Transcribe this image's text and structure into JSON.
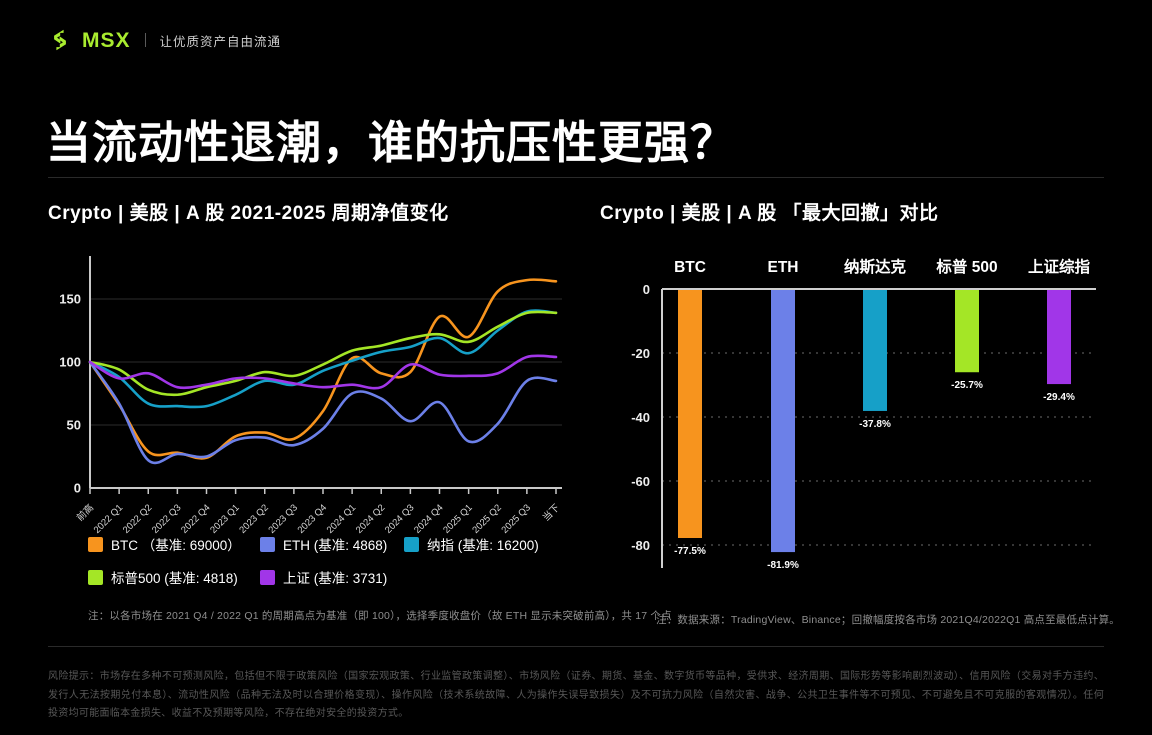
{
  "brand": {
    "logo_text": "MSX",
    "tagline": "让优质资产自由流通",
    "accent_color": "#A9EC2F"
  },
  "page_title": "当流动性退潮，谁的抗压性更强？",
  "chart_data": [
    {
      "type": "line",
      "title": "Crypto | 美股 | A 股   2021-2025 周期净值变化",
      "note": "注：以各市场在 2021 Q4 / 2022 Q1 的周期高点为基准（即 100），选择季度收盘价（故 ETH 显示未突破前高），共 17 个点",
      "x": [
        "前高",
        "2022 Q1",
        "2022 Q2",
        "2022 Q3",
        "2022 Q4",
        "2023 Q1",
        "2023 Q2",
        "2023 Q3",
        "2023 Q4",
        "2024 Q1",
        "2024 Q2",
        "2024 Q3",
        "2024 Q4",
        "2025 Q1",
        "2025 Q2",
        "2025 Q3",
        "当下"
      ],
      "yticks": [
        0,
        50,
        100,
        150
      ],
      "ylim": [
        0,
        180
      ],
      "grid": "horizontal-solid",
      "legend_position": "bottom",
      "series": [
        {
          "name": "BTC",
          "label": "BTC （基准: 69000）",
          "color": "#F7941E",
          "values": [
            100,
            66,
            29,
            28,
            24,
            41,
            44,
            39,
            61,
            103,
            91,
            92,
            136,
            120,
            156,
            165,
            164
          ]
        },
        {
          "name": "ETH",
          "label": "ETH (基准: 4868)",
          "color": "#6C80E8",
          "values": [
            100,
            67,
            22,
            27,
            25,
            38,
            40,
            34,
            47,
            75,
            71,
            53,
            68,
            37,
            51,
            85,
            85
          ]
        },
        {
          "name": "纳指",
          "label": "纳指 (基准: 16200)",
          "color": "#16A0C8",
          "values": [
            100,
            88,
            67,
            65,
            65,
            74,
            85,
            82,
            93,
            101,
            108,
            112,
            119,
            107,
            125,
            140,
            139
          ]
        },
        {
          "name": "标普500",
          "label": "标普500 (基准: 4818)",
          "color": "#A4E626",
          "values": [
            100,
            94,
            78,
            74,
            80,
            85,
            92,
            89,
            98,
            109,
            113,
            119,
            122,
            116,
            128,
            139,
            139
          ]
        },
        {
          "name": "上证",
          "label": "上证 (基准: 3731)",
          "color": "#A136E8",
          "values": [
            100,
            87,
            91,
            80,
            82,
            87,
            87,
            83,
            80,
            82,
            80,
            98,
            90,
            89,
            91,
            104,
            104
          ]
        }
      ]
    },
    {
      "type": "bar",
      "title": "Crypto | 美股 | A 股 「最大回撤」对比",
      "note": "注：数据来源：TradingView、Binance；回撤幅度按各市场 2021Q4/2022Q1 高点至最低点计算。",
      "categories": [
        "BTC",
        "ETH",
        "纳斯达克",
        "标普 500",
        "上证综指"
      ],
      "values": [
        -77.5,
        -81.9,
        -37.8,
        -25.7,
        -29.4
      ],
      "labels": [
        "-77.5%",
        "-81.9%",
        "-37.8%",
        "-25.7%",
        "-29.4%"
      ],
      "colors": [
        "#F7941E",
        "#6C80E8",
        "#16A0C8",
        "#A4E626",
        "#A136E8"
      ],
      "yticks": [
        0,
        -20,
        -40,
        -60,
        -80
      ],
      "ylim": [
        -90,
        0
      ],
      "grid": "horizontal-dotted"
    }
  ],
  "footer": {
    "disclaimer": "风险提示：市场存在多种不可预测风险，包括但不限于政策风险（国家宏观政策、行业监管政策调整）、市场风险（证券、期货、基金、数字货币等品种，受供求、经济周期、国际形势等影响剧烈波动）、信用风险（交易对手方违约、发行人无法按期兑付本息）、流动性风险（品种无法及时以合理价格变现）、操作风险（技术系统故障、人为操作失误导致损失）及不可抗力风险（自然灾害、战争、公共卫生事件等不可预见、不可避免且不可克服的客观情况）。任何投资均可能面临本金损失、收益不及预期等风险，不存在绝对安全的投资方式。"
  }
}
